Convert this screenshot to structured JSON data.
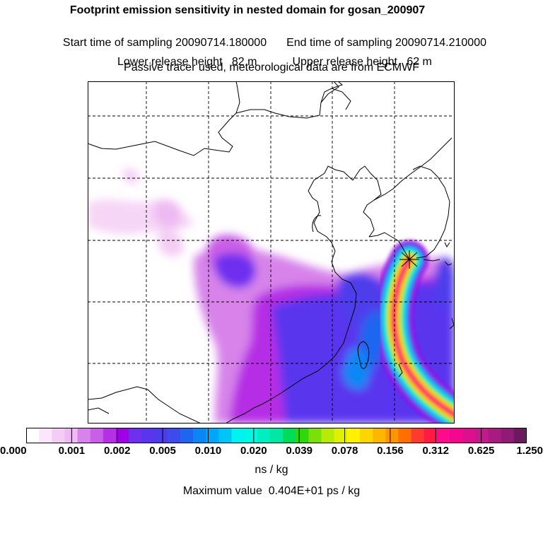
{
  "header": {
    "title": "Footprint emission sensitivity in nested domain for gosan_200907",
    "start_label": "Start time of sampling 20090714.180000",
    "end_label": "End time of sampling 20090714.210000",
    "lower_label": "Lower release height   82 m",
    "upper_label": "Upper release height   62 m",
    "tracer_line": "Passive tracer used, meteorological data are from ECMWF"
  },
  "colorbar": {
    "colors": [
      "#ffffff",
      "#fbe6fb",
      "#f4ccf4",
      "#eebaf2",
      "#d783ea",
      "#ca5fe7",
      "#b52fe5",
      "#a000e5",
      "#6f2fef",
      "#5a34ee",
      "#4d3ceb",
      "#3e4bec",
      "#1e66f0",
      "#0a87f5",
      "#00a6f7",
      "#00c3f8",
      "#00f3f0",
      "#00f7e2",
      "#00eec0",
      "#00e8a3",
      "#00dc5a",
      "#2ed80a",
      "#7bdf0a",
      "#b6ea08",
      "#e0f000",
      "#fff200",
      "#ffd500",
      "#ffb600",
      "#ff9600",
      "#ff6e00",
      "#ff3a2e",
      "#ff1a46",
      "#ff0a8a",
      "#f2078f",
      "#dd0f8e",
      "#c21a8a",
      "#a81c82",
      "#8f1b76",
      "#6c1a5e"
    ],
    "tick_labels": [
      "0.000",
      "0.001",
      "0.002",
      "0.005",
      "0.010",
      "0.020",
      "0.039",
      "0.078",
      "0.156",
      "0.312",
      "0.625",
      "1.250"
    ],
    "units": "ns / kg"
  },
  "footer": {
    "max_value": "Maximum value  0.404E+01 ps / kg"
  },
  "map": {
    "plume_colors": [
      "#a000e5",
      "#4d3ceb",
      "#00a6f7",
      "#00f3f0",
      "#2ed80a",
      "#fff200",
      "#ff9600",
      "#ff1a46",
      "#ff0a8a"
    ]
  }
}
